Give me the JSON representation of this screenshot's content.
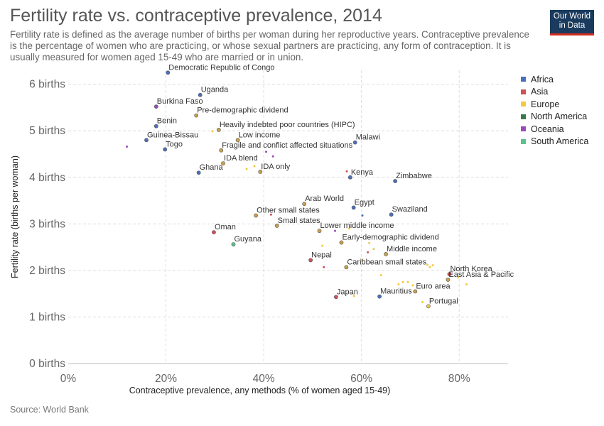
{
  "header": {
    "title": "Fertility rate vs. contraceptive prevalence, 2014",
    "subtitle": "Fertility rate is defined as the average number of births per woman during her reproductive years. Contraceptive prevalence is the percentage of women who are practicing, or whose sexual partners are practicing, any form of contraception. It is usually measured for women aged 15-49 who are married or in union."
  },
  "logo": {
    "line1": "Our World",
    "line2": "in Data"
  },
  "footer": {
    "source": "Source: World Bank"
  },
  "colors": {
    "Africa": "#4c6fb9",
    "Asia": "#d24f57",
    "Europe": "#f5c842",
    "North America": "#3a7a48",
    "Oceania": "#9b4ab8",
    "South America": "#59c48a",
    "Aggregate": "#c9a24f",
    "grid": "#dddddd"
  },
  "legend": [
    "Africa",
    "Asia",
    "Europe",
    "North America",
    "Oceania",
    "South America"
  ],
  "chart_data": {
    "type": "scatter",
    "title": "Fertility rate vs. contraceptive prevalence, 2014",
    "xlabel": "Contraceptive prevalence, any methods (% of women aged 15-49)",
    "ylabel": "Fertility rate (births per woman)",
    "xlim": [
      0,
      90
    ],
    "ylim": [
      0,
      6.3
    ],
    "xticks": [
      0,
      20,
      40,
      60,
      80
    ],
    "xtick_labels": [
      "0%",
      "20%",
      "40%",
      "60%",
      "80%"
    ],
    "yticks": [
      0,
      1,
      2,
      3,
      4,
      5,
      6
    ],
    "ytick_labels": [
      "0 births",
      "1 births",
      "2 births",
      "3 births",
      "4 births",
      "5 births",
      "6 births"
    ],
    "grid": true,
    "legend_position": "right",
    "points": [
      {
        "label": "Democratic Republic of Congo",
        "x": 20.4,
        "y": 6.25,
        "group": "Africa"
      },
      {
        "label": "Uganda",
        "x": 27,
        "y": 5.77,
        "group": "Africa"
      },
      {
        "label": "Burkina Faso",
        "x": 18,
        "y": 5.52,
        "group": "Oceania"
      },
      {
        "label": "Pre-demographic dividend",
        "x": 26.2,
        "y": 5.33,
        "group": "Aggregate"
      },
      {
        "label": "Benin",
        "x": 18,
        "y": 5.1,
        "group": "Africa"
      },
      {
        "label": "Heavily indebted poor countries (HIPC)",
        "x": 30.8,
        "y": 5.02,
        "group": "Aggregate"
      },
      {
        "label": "Guinea-Bissau",
        "x": 16,
        "y": 4.8,
        "group": "Africa"
      },
      {
        "label": "Low income",
        "x": 34.7,
        "y": 4.8,
        "group": "Aggregate"
      },
      {
        "label": "Togo",
        "x": 19.8,
        "y": 4.6,
        "group": "Africa"
      },
      {
        "label": "Fragile and conflict affected situations",
        "x": 31.3,
        "y": 4.58,
        "group": "Aggregate"
      },
      {
        "label": "Malawi",
        "x": 58.7,
        "y": 4.75,
        "group": "Africa"
      },
      {
        "label": "IDA blend",
        "x": 31.7,
        "y": 4.3,
        "group": "Aggregate"
      },
      {
        "label": "IDA only",
        "x": 39.3,
        "y": 4.12,
        "group": "Aggregate"
      },
      {
        "label": "Ghana",
        "x": 26.7,
        "y": 4.1,
        "group": "Africa"
      },
      {
        "label": "Kenya",
        "x": 57.7,
        "y": 4.0,
        "group": "Africa"
      },
      {
        "label": "Zimbabwe",
        "x": 66.9,
        "y": 3.92,
        "group": "Africa"
      },
      {
        "label": "Arab World",
        "x": 48.3,
        "y": 3.43,
        "group": "Aggregate"
      },
      {
        "label": "Egypt",
        "x": 58.4,
        "y": 3.35,
        "group": "Africa"
      },
      {
        "label": "Other small states",
        "x": 38.4,
        "y": 3.18,
        "group": "Aggregate"
      },
      {
        "label": "Swaziland",
        "x": 66.1,
        "y": 3.2,
        "group": "Africa"
      },
      {
        "label": "Small states",
        "x": 42.7,
        "y": 2.96,
        "group": "Aggregate"
      },
      {
        "label": "Lower middle income",
        "x": 51.4,
        "y": 2.85,
        "group": "Aggregate"
      },
      {
        "label": "Oman",
        "x": 29.8,
        "y": 2.82,
        "group": "Asia"
      },
      {
        "label": "Early-demographic dividend",
        "x": 55.9,
        "y": 2.6,
        "group": "Aggregate"
      },
      {
        "label": "Guyana",
        "x": 33.8,
        "y": 2.56,
        "group": "South America"
      },
      {
        "label": "Middle income",
        "x": 65,
        "y": 2.35,
        "group": "Aggregate"
      },
      {
        "label": "Nepal",
        "x": 49.6,
        "y": 2.22,
        "group": "Asia"
      },
      {
        "label": "Caribbean small states",
        "x": 56.9,
        "y": 2.07,
        "group": "Aggregate"
      },
      {
        "label": "North Korea",
        "x": 78,
        "y": 1.92,
        "group": "Asia"
      },
      {
        "label": "East Asia & Pacific",
        "x": 77.7,
        "y": 1.8,
        "group": "Aggregate"
      },
      {
        "label": "Euro area",
        "x": 71,
        "y": 1.55,
        "group": "Aggregate"
      },
      {
        "label": "Japan",
        "x": 54.8,
        "y": 1.43,
        "group": "Asia"
      },
      {
        "label": "Mauritius",
        "x": 63.7,
        "y": 1.44,
        "group": "Africa"
      },
      {
        "label": "Portugal",
        "x": 73.7,
        "y": 1.23,
        "group": "Europe"
      },
      {
        "label": "",
        "x": 12,
        "y": 4.66,
        "group": "Oceania"
      },
      {
        "label": "",
        "x": 41.9,
        "y": 4.45,
        "group": "Oceania"
      },
      {
        "label": "",
        "x": 40.5,
        "y": 4.55,
        "group": "Oceania"
      },
      {
        "label": "",
        "x": 29.5,
        "y": 4.99,
        "group": "Europe"
      },
      {
        "label": "",
        "x": 36.5,
        "y": 4.18,
        "group": "Europe"
      },
      {
        "label": "",
        "x": 38.1,
        "y": 4.24,
        "group": "Europe"
      },
      {
        "label": "",
        "x": 57,
        "y": 4.13,
        "group": "Asia"
      },
      {
        "label": "",
        "x": 60.2,
        "y": 3.18,
        "group": "Africa"
      },
      {
        "label": "",
        "x": 41.5,
        "y": 3.2,
        "group": "Asia"
      },
      {
        "label": "",
        "x": 54.6,
        "y": 2.85,
        "group": "Oceania"
      },
      {
        "label": "",
        "x": 57.5,
        "y": 2.9,
        "group": "Europe"
      },
      {
        "label": "",
        "x": 52,
        "y": 2.53,
        "group": "Europe"
      },
      {
        "label": "",
        "x": 61.6,
        "y": 2.59,
        "group": "Europe"
      },
      {
        "label": "",
        "x": 61.3,
        "y": 2.39,
        "group": "Asia"
      },
      {
        "label": "",
        "x": 62.5,
        "y": 2.46,
        "group": "Europe"
      },
      {
        "label": "",
        "x": 52.3,
        "y": 2.07,
        "group": "Asia"
      },
      {
        "label": "",
        "x": 60.2,
        "y": 2.22,
        "group": "Europe"
      },
      {
        "label": "",
        "x": 64,
        "y": 1.9,
        "group": "Europe"
      },
      {
        "label": "",
        "x": 73.5,
        "y": 2.12,
        "group": "Europe"
      },
      {
        "label": "",
        "x": 74,
        "y": 2.07,
        "group": "Europe"
      },
      {
        "label": "",
        "x": 74.6,
        "y": 2.11,
        "group": "Europe"
      },
      {
        "label": "",
        "x": 79.8,
        "y": 1.85,
        "group": "Europe"
      },
      {
        "label": "",
        "x": 81.5,
        "y": 1.7,
        "group": "Europe"
      },
      {
        "label": "",
        "x": 67.6,
        "y": 1.7,
        "group": "Europe"
      },
      {
        "label": "",
        "x": 68.5,
        "y": 1.75,
        "group": "Europe"
      },
      {
        "label": "",
        "x": 69.5,
        "y": 1.75,
        "group": "Europe"
      },
      {
        "label": "",
        "x": 70.5,
        "y": 1.68,
        "group": "Europe"
      },
      {
        "label": "",
        "x": 72.5,
        "y": 1.32,
        "group": "Europe"
      },
      {
        "label": "",
        "x": 58.5,
        "y": 1.45,
        "group": "Europe"
      }
    ]
  }
}
